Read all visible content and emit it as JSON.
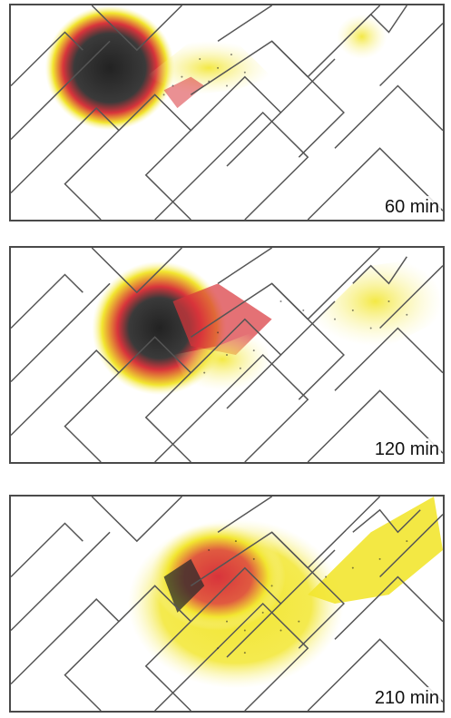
{
  "panels": [
    {
      "time_label": "60 min"
    },
    {
      "time_label": "120 min"
    },
    {
      "time_label": "210 min"
    }
  ],
  "colors": {
    "dark_core": "#2b2b2b",
    "red": "#d8343b",
    "yellow": "#f2e630",
    "pale_yellow": "#fbf5b0",
    "channel_walls": "#555555"
  }
}
